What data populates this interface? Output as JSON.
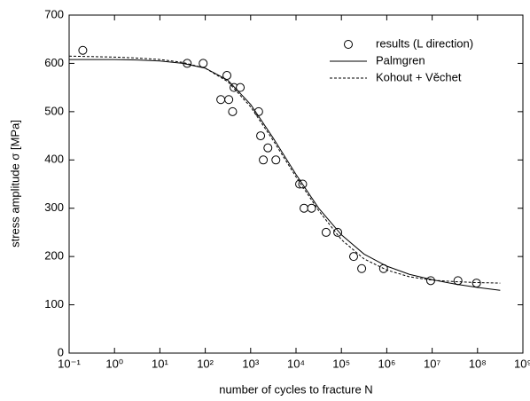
{
  "chart_data": {
    "type": "scatter",
    "xlabel": "number of cycles to fracture  N",
    "ylabel": "stress amplitude σ  [MPa]",
    "xscale": "log",
    "xlim": [
      0.1,
      1000000000
    ],
    "ylim": [
      0,
      700
    ],
    "xticks": [
      {
        "value": 0.1,
        "label": "10⁻¹"
      },
      {
        "value": 1,
        "label": "10⁰"
      },
      {
        "value": 10,
        "label": "10¹"
      },
      {
        "value": 100,
        "label": "10²"
      },
      {
        "value": 1000,
        "label": "10³"
      },
      {
        "value": 10000,
        "label": "10⁴"
      },
      {
        "value": 100000,
        "label": "10⁵"
      },
      {
        "value": 1000000,
        "label": "10⁶"
      },
      {
        "value": 10000000,
        "label": "10⁷"
      },
      {
        "value": 100000000,
        "label": "10⁸"
      },
      {
        "value": 1000000000,
        "label": "10⁹"
      }
    ],
    "yticks": [
      0,
      100,
      200,
      300,
      400,
      500,
      600,
      700
    ],
    "legend": "upper right",
    "series": [
      {
        "name": "results (L direction)",
        "type": "scatter",
        "color": "#000000",
        "x": [
          0.2,
          40,
          90,
          220,
          300,
          330,
          400,
          430,
          590,
          1500,
          1660,
          1900,
          2400,
          3600,
          12000,
          14000,
          15000,
          22000,
          46000,
          83000,
          186000,
          280000,
          850000,
          9300000,
          37000000,
          95000000
        ],
        "values": [
          627,
          600,
          600,
          525,
          575,
          525,
          500,
          550,
          550,
          500,
          450,
          400,
          425,
          400,
          350,
          350,
          300,
          300,
          250,
          250,
          200,
          175,
          175,
          150,
          150,
          145
        ]
      },
      {
        "name": "Palmgren",
        "type": "line",
        "style": "solid",
        "color": "#000000",
        "x": [
          0.1,
          0.316,
          1,
          3.16,
          10,
          31.6,
          100,
          316,
          1000,
          3160,
          10000,
          31600,
          100000,
          316000,
          1000000,
          3160000,
          10000000,
          31600000,
          100000000,
          316000000
        ],
        "values": [
          608,
          608,
          608,
          607,
          605,
          600,
          590,
          565,
          515,
          445,
          370,
          300,
          245,
          205,
          180,
          163,
          152,
          143,
          136,
          130
        ]
      },
      {
        "name": "Kohout + Věchet",
        "type": "line",
        "style": "dashed",
        "color": "#000000",
        "x": [
          0.1,
          0.316,
          1,
          3.16,
          10,
          31.6,
          100,
          316,
          1000,
          3160,
          10000,
          31600,
          100000,
          316000,
          1000000,
          3160000,
          10000000,
          31600000,
          100000000,
          316000000
        ],
        "values": [
          615,
          614,
          613,
          611,
          608,
          602,
          590,
          562,
          510,
          440,
          365,
          295,
          235,
          195,
          172,
          158,
          151,
          148,
          146,
          145
        ]
      }
    ]
  }
}
